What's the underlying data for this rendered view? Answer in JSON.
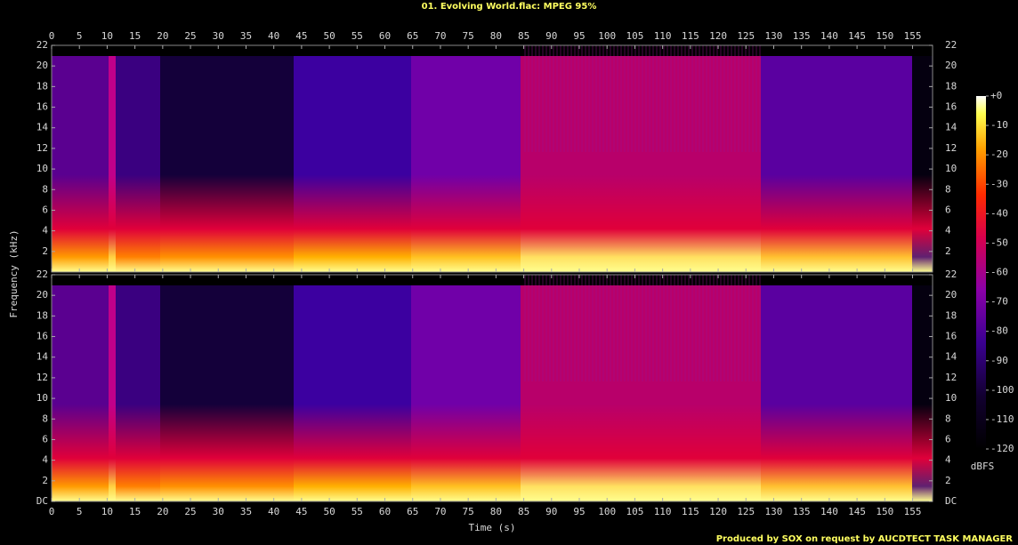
{
  "chart_data": {
    "type": "spectrogram",
    "title": "01. Evolving World.flac: MPEG 95%",
    "x_label": "Time (s)",
    "y_label": "Frequency (kHz)",
    "xlim": [
      0,
      158.6
    ],
    "xticks": [
      0,
      5,
      10,
      15,
      20,
      25,
      30,
      35,
      40,
      45,
      50,
      55,
      60,
      65,
      70,
      75,
      80,
      85,
      90,
      95,
      100,
      105,
      110,
      115,
      120,
      125,
      130,
      135,
      140,
      145,
      150,
      155
    ],
    "ylim": [
      0,
      22
    ],
    "panels": [
      {
        "yticks": [
          2,
          4,
          6,
          8,
          10,
          12,
          14,
          16,
          18,
          20,
          22
        ]
      },
      {
        "yticks": [
          {
            "value": 0,
            "label": "DC"
          },
          2,
          4,
          6,
          8,
          10,
          12,
          14,
          16,
          18,
          20,
          22
        ]
      }
    ],
    "colorbar": {
      "label": "dBFS",
      "lim": [
        -120,
        0
      ],
      "ticks": [
        {
          "value": 0,
          "label": "+0"
        },
        -10,
        -20,
        -30,
        -40,
        -50,
        -60,
        -70,
        -80,
        -90,
        -100,
        -110,
        -120
      ]
    },
    "footer": "Produced by SOX on request by AUCDTECT TASK MANAGER"
  }
}
